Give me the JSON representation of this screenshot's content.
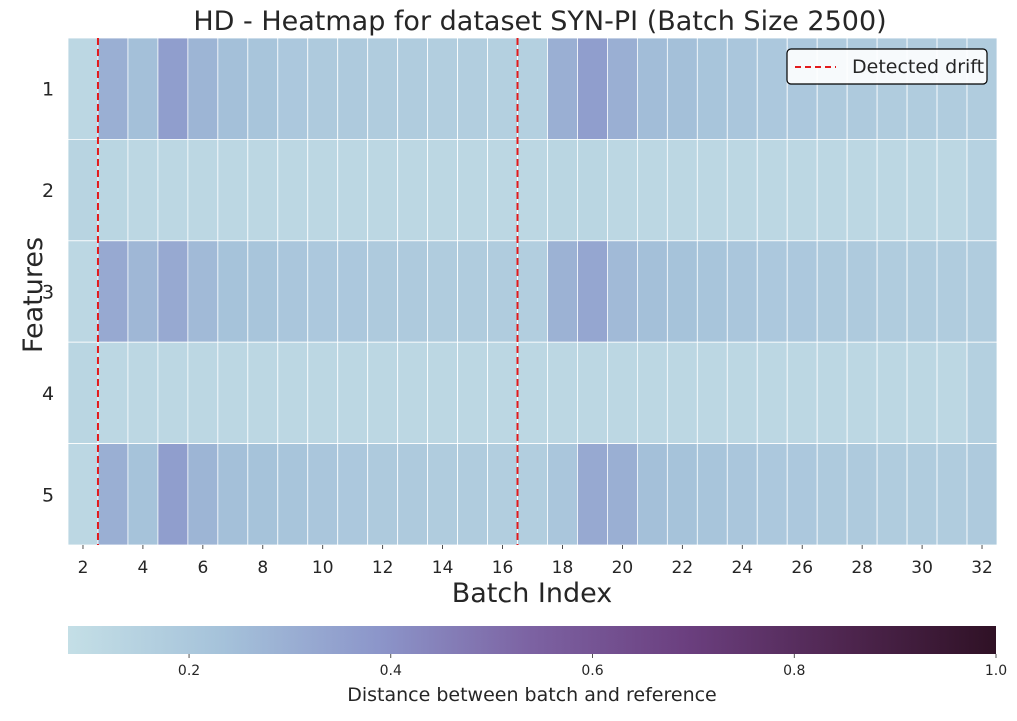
{
  "chart_data": {
    "type": "heatmap",
    "title": "HD - Heatmap for dataset SYN-PI (Batch Size 2500)",
    "xlabel": "Batch Index",
    "ylabel": "Features",
    "rows": [
      "1",
      "2",
      "3",
      "4",
      "5"
    ],
    "columns": [
      2,
      3,
      4,
      5,
      6,
      7,
      8,
      9,
      10,
      11,
      12,
      13,
      14,
      15,
      16,
      17,
      18,
      19,
      20,
      21,
      22,
      23,
      24,
      25,
      26,
      27,
      28,
      29,
      30,
      31,
      32
    ],
    "x_tick_labels": [
      "2",
      "4",
      "6",
      "8",
      "10",
      "12",
      "14",
      "16",
      "18",
      "20",
      "22",
      "24",
      "26",
      "28",
      "30",
      "32"
    ],
    "values": [
      [
        0.12,
        0.3,
        0.24,
        0.36,
        0.28,
        0.24,
        0.22,
        0.2,
        0.19,
        0.19,
        0.18,
        0.18,
        0.17,
        0.17,
        0.16,
        0.16,
        0.3,
        0.36,
        0.3,
        0.25,
        0.24,
        0.22,
        0.21,
        0.2,
        0.2,
        0.19,
        0.19,
        0.18,
        0.18,
        0.18,
        0.18
      ],
      [
        0.14,
        0.13,
        0.12,
        0.12,
        0.12,
        0.12,
        0.12,
        0.12,
        0.12,
        0.12,
        0.12,
        0.12,
        0.12,
        0.12,
        0.12,
        0.12,
        0.13,
        0.13,
        0.12,
        0.12,
        0.12,
        0.12,
        0.12,
        0.12,
        0.12,
        0.12,
        0.12,
        0.12,
        0.12,
        0.12,
        0.15
      ],
      [
        0.12,
        0.32,
        0.27,
        0.32,
        0.26,
        0.23,
        0.22,
        0.21,
        0.2,
        0.2,
        0.19,
        0.19,
        0.18,
        0.18,
        0.18,
        0.17,
        0.29,
        0.33,
        0.26,
        0.24,
        0.23,
        0.22,
        0.21,
        0.2,
        0.2,
        0.19,
        0.19,
        0.18,
        0.18,
        0.18,
        0.18
      ],
      [
        0.13,
        0.12,
        0.12,
        0.12,
        0.12,
        0.12,
        0.12,
        0.12,
        0.12,
        0.12,
        0.12,
        0.12,
        0.12,
        0.12,
        0.12,
        0.12,
        0.12,
        0.12,
        0.12,
        0.12,
        0.12,
        0.12,
        0.12,
        0.12,
        0.12,
        0.12,
        0.12,
        0.12,
        0.12,
        0.12,
        0.16
      ],
      [
        0.12,
        0.3,
        0.23,
        0.36,
        0.28,
        0.24,
        0.23,
        0.22,
        0.21,
        0.2,
        0.19,
        0.19,
        0.18,
        0.18,
        0.17,
        0.17,
        0.21,
        0.32,
        0.3,
        0.24,
        0.23,
        0.22,
        0.21,
        0.2,
        0.2,
        0.19,
        0.19,
        0.18,
        0.18,
        0.18,
        0.19
      ]
    ],
    "drift_lines_x": [
      2.5,
      16.5
    ],
    "legend": {
      "label": "Detected drift",
      "position": "upper-right"
    },
    "colorbar": {
      "label": "Distance between batch and reference",
      "range": [
        0.08,
        1.0
      ],
      "ticks": [
        0.2,
        0.4,
        0.6,
        0.8,
        1.0
      ],
      "tick_labels": [
        "0.2",
        "0.4",
        "0.6",
        "0.8",
        "1.0"
      ]
    },
    "colors": {
      "cmap": [
        "#c4dfe6",
        "#a5c2da",
        "#8c96ca",
        "#7c62a2",
        "#6b3f7f",
        "#4f2650",
        "#2f1125"
      ],
      "drift_line": "#e31a1c",
      "grid_line": "#ffffff"
    }
  }
}
